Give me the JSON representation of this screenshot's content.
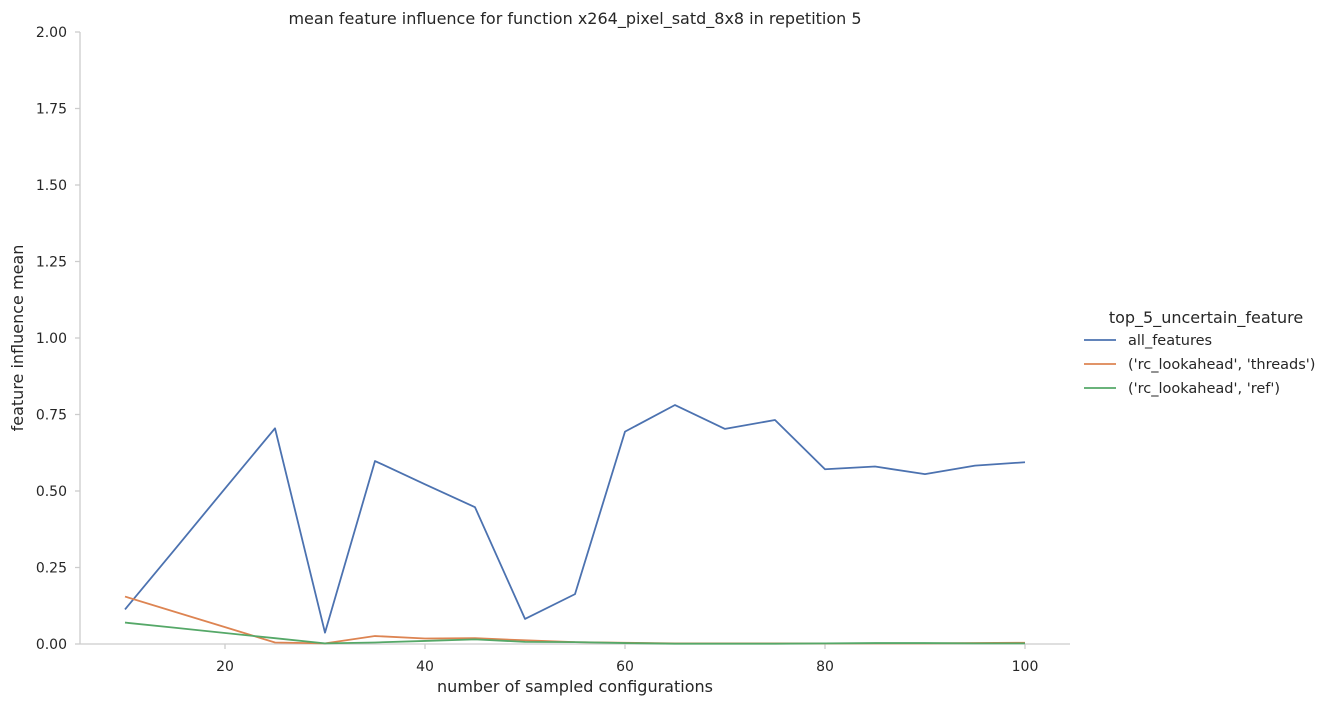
{
  "chart_data": {
    "type": "line",
    "title": "mean feature influence for function x264_pixel_satd_8x8 in repetition 5",
    "xlabel": "number of sampled configurations",
    "ylabel": "feature influence mean",
    "xlim": [
      5.5,
      104.5
    ],
    "ylim": [
      0,
      2.0
    ],
    "xticks": [
      20,
      40,
      60,
      80,
      100
    ],
    "yticks": [
      0.0,
      0.25,
      0.5,
      0.75,
      1.0,
      1.25,
      1.5,
      1.75,
      2.0
    ],
    "ytick_labels": [
      "0.00",
      "0.25",
      "0.50",
      "0.75",
      "1.00",
      "1.25",
      "1.50",
      "1.75",
      "2.00"
    ],
    "grid": false,
    "legend": {
      "title": "top_5_uncertain_feature",
      "placement": "right"
    },
    "x": [
      10,
      15,
      20,
      25,
      30,
      35,
      40,
      45,
      50,
      55,
      60,
      65,
      70,
      75,
      80,
      85,
      90,
      95,
      100
    ],
    "series": [
      {
        "name": "all_features",
        "color": "#4c72b0",
        "values": [
          0.113,
          0.31,
          0.508,
          0.705,
          0.037,
          0.598,
          0.522,
          0.447,
          0.082,
          0.163,
          0.694,
          0.781,
          0.703,
          0.732,
          0.571,
          0.58,
          0.555,
          0.583,
          0.594
        ]
      },
      {
        "name": "('rc_lookahead', 'threads')",
        "color": "#dd8452",
        "values": [
          0.155,
          0.105,
          0.055,
          0.005,
          0.002,
          0.026,
          0.018,
          0.019,
          0.012,
          0.006,
          0.004,
          0.002,
          0.002,
          0.002,
          0.002,
          0.002,
          0.002,
          0.003,
          0.004
        ]
      },
      {
        "name": "('rc_lookahead', 'ref')",
        "color": "#55a868",
        "values": [
          0.07,
          0.053,
          0.036,
          0.019,
          0.002,
          0.005,
          0.01,
          0.015,
          0.007,
          0.006,
          0.003,
          0.001,
          0.001,
          0.001,
          0.002,
          0.003,
          0.003,
          0.002,
          0.002
        ]
      }
    ]
  }
}
